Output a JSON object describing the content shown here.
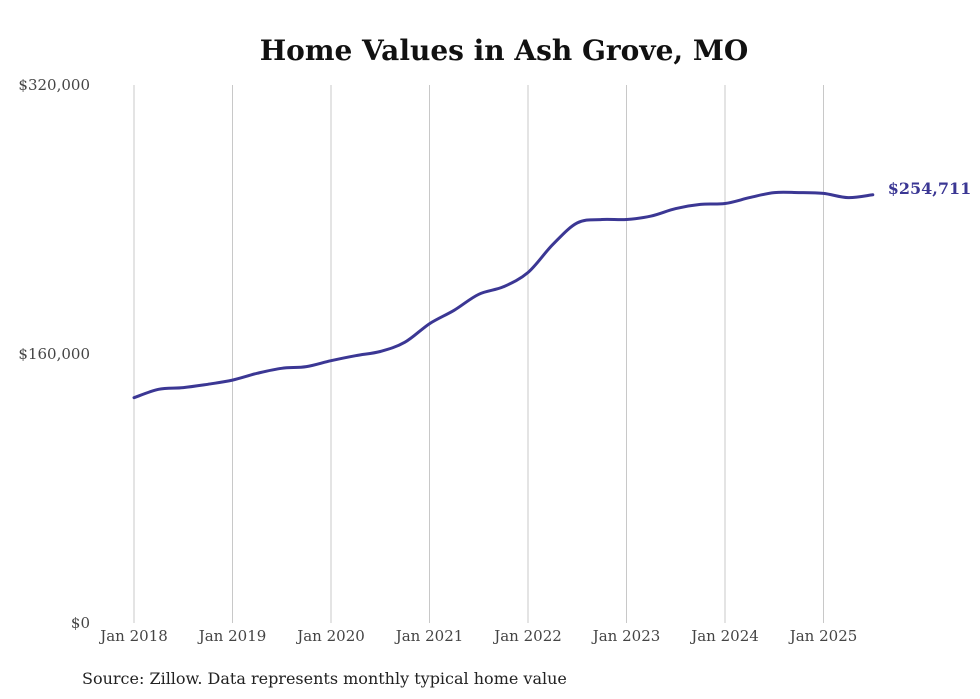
{
  "chart_data": {
    "type": "line",
    "title": "Home Values in Ash Grove, MO",
    "xlabel": "",
    "ylabel": "",
    "ylim": [
      0,
      320000
    ],
    "y_ticks": [
      "$0",
      "$160,000",
      "$320,000"
    ],
    "y_tick_values": [
      0,
      160000,
      320000
    ],
    "x_ticks": [
      "Jan 2018",
      "Jan 2019",
      "Jan 2020",
      "Jan 2021",
      "Jan 2022",
      "Jan 2023",
      "Jan 2024",
      "Jan 2025"
    ],
    "grid": "vertical",
    "series": [
      {
        "color": "#3b3794",
        "x": [
          "2018-01",
          "2018-04",
          "2018-07",
          "2018-10",
          "2019-01",
          "2019-04",
          "2019-07",
          "2019-10",
          "2020-01",
          "2020-04",
          "2020-07",
          "2020-10",
          "2021-01",
          "2021-04",
          "2021-07",
          "2021-10",
          "2022-01",
          "2022-04",
          "2022-07",
          "2022-10",
          "2023-01",
          "2023-04",
          "2023-07",
          "2023-10",
          "2024-01",
          "2024-04",
          "2024-07",
          "2024-10",
          "2025-01",
          "2025-04",
          "2025-07"
        ],
        "values": [
          134000,
          139000,
          140000,
          142000,
          144500,
          148500,
          151500,
          152500,
          156000,
          159000,
          161500,
          167000,
          178000,
          186000,
          195500,
          200000,
          208500,
          225000,
          238000,
          240000,
          240000,
          242000,
          246500,
          249000,
          249500,
          253000,
          256000,
          256000,
          255500,
          253000,
          254711
        ]
      }
    ],
    "end_label": "$254,711"
  },
  "footer": {
    "source": "Source: Zillow. Data represents monthly typical home value"
  }
}
